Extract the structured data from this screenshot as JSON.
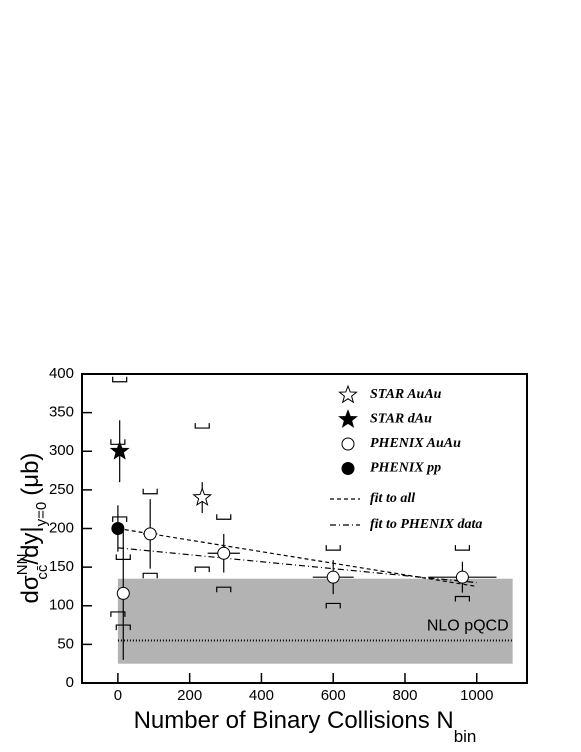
{
  "chart_data": {
    "type": "errorbar",
    "y_label": {
      "main": "dσ",
      "sup": "NN",
      "sub": "cc̄",
      "rest": "/dy|",
      "sub2": "y=0",
      "unit": "(μb)"
    },
    "x_label": {
      "main": "Number of Binary Collisions N",
      "sub": "bin"
    },
    "xlim": [
      -100,
      1140
    ],
    "ylim": [
      0,
      400
    ],
    "xticks": [
      0,
      200,
      400,
      600,
      800,
      1000
    ],
    "yticks": [
      0,
      50,
      100,
      150,
      200,
      250,
      300,
      350,
      400
    ],
    "band": {
      "x": [
        0,
        1100
      ],
      "y": [
        25,
        135
      ],
      "color": "#b3b3b3"
    },
    "nlo": {
      "x": [
        0,
        1100
      ],
      "value": 55,
      "label": "NLO pQCD"
    },
    "series": [
      {
        "name": "STAR AuAu",
        "marker": "star",
        "filled": false,
        "x": [
          235
        ],
        "values": [
          240
        ],
        "yerr": [
          20
        ],
        "xerr": [
          0
        ],
        "sys_low": [
          150
        ],
        "sys_high": [
          330
        ]
      },
      {
        "name": "STAR dAu",
        "marker": "star",
        "filled": true,
        "x": [
          5
        ],
        "values": [
          300
        ],
        "yerr": [
          40
        ],
        "xerr": [
          0
        ],
        "sys_low": [
          215
        ],
        "sys_high": [
          390
        ]
      },
      {
        "name": "PHENIX AuAu",
        "marker": "circle",
        "filled": false,
        "x": [
          15,
          90,
          295,
          600,
          960
        ],
        "values": [
          116,
          193,
          168,
          137,
          137
        ],
        "yerr": [
          86,
          45,
          25,
          22,
          20
        ],
        "xerr": [
          0,
          20,
          45,
          57,
          95
        ],
        "sys_low": [
          75,
          142,
          124,
          103,
          112
        ],
        "sys_high": [
          160,
          245,
          212,
          172,
          172
        ]
      },
      {
        "name": "PHENIX pp",
        "marker": "circle",
        "filled": true,
        "x": [
          0
        ],
        "values": [
          200
        ],
        "yerr": [
          30
        ],
        "xerr": [
          0
        ],
        "sys_low": [
          92
        ],
        "sys_high": [
          309
        ]
      }
    ],
    "fits": [
      {
        "name": "fit to all",
        "style": "4,3",
        "x": [
          0,
          1000
        ],
        "values": [
          200,
          125
        ]
      },
      {
        "name": "fit to PHENIX data",
        "style": "6,3,1,3",
        "x": [
          0,
          1000
        ],
        "values": [
          175,
          130
        ]
      }
    ]
  }
}
